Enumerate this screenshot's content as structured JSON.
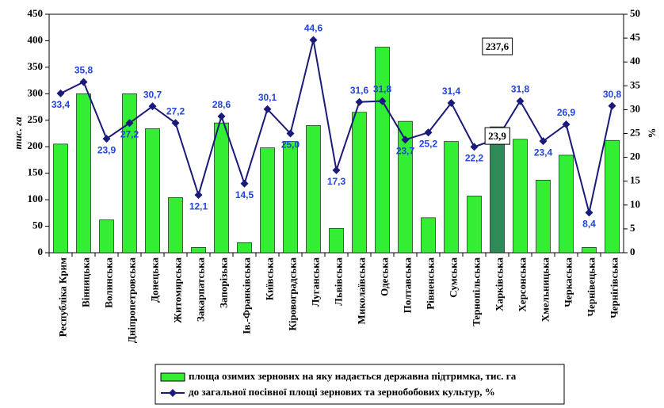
{
  "chart_data": {
    "type": "combo",
    "ylabel": "тис. га",
    "y2label": "%",
    "categories": [
      "Республіка Крим",
      "Вінницька",
      "Волинська",
      "Дніпропетровська",
      "Донецька",
      "Житомирська",
      "Закарпатська",
      "Запорізька",
      "Ів.-Франківська",
      "Київська",
      "Кіровоградська",
      "Луганська",
      "Львівська",
      "Миколаївська",
      "Одеська",
      "Полтавська",
      "Рівненська",
      "Сумська",
      "Тернопільська",
      "Харківська",
      "Херсонська",
      "Хмельницька",
      "Черкаська",
      "Чернівецька",
      "Чернігівська"
    ],
    "series": [
      {
        "name": "площа озимих зернових на яку надається державна підтримка, тис. га",
        "type": "bar",
        "color": "#33ee33",
        "colors": [
          "#33ee33",
          "#33ee33",
          "#33ee33",
          "#33ee33",
          "#33ee33",
          "#33ee33",
          "#33ee33",
          "#33ee33",
          "#33ee33",
          "#33ee33",
          "#33ee33",
          "#33ee33",
          "#33ee33",
          "#33ee33",
          "#33ee33",
          "#33ee33",
          "#33ee33",
          "#33ee33",
          "#33ee33",
          "#2e8b57",
          "#33ee33",
          "#33ee33",
          "#33ee33",
          "#33ee33",
          "#33ee33"
        ],
        "values": [
          205,
          300,
          62,
          300,
          234,
          104,
          10,
          245,
          19,
          198,
          210,
          240,
          46,
          265,
          388,
          248,
          66,
          210,
          107,
          237.6,
          214,
          137,
          184,
          10,
          212
        ],
        "value_labels": [
          null,
          null,
          null,
          null,
          null,
          null,
          null,
          null,
          null,
          null,
          null,
          null,
          null,
          null,
          null,
          null,
          null,
          null,
          null,
          "237,6",
          null,
          null,
          null,
          null,
          null
        ]
      },
      {
        "name": "до загальної посівної площі зернових та зернобобових культур, %",
        "type": "line",
        "axis": "y2",
        "color": "#1a1a7a",
        "values": [
          33.4,
          35.8,
          23.9,
          27.2,
          30.7,
          27.2,
          12.1,
          28.6,
          14.5,
          30.1,
          25.0,
          44.6,
          17.3,
          31.6,
          31.8,
          23.7,
          25.2,
          31.4,
          22.2,
          23.9,
          31.8,
          23.4,
          26.9,
          8.4,
          30.8
        ],
        "value_labels": [
          "33,4",
          "35,8",
          "23,9",
          "27,2",
          "30,7",
          "27,2",
          "12,1",
          "28,6",
          "14,5",
          "30,1",
          "25,0",
          "44,6",
          "17,3",
          "31,6",
          "31,8",
          "23,7",
          "25,2",
          "31,4",
          "22,2",
          "23,9",
          "31,8",
          "23,4",
          "26,9",
          "8,4",
          "30,8"
        ]
      }
    ],
    "ylim": [
      0,
      450
    ],
    "yticks": [
      0,
      50,
      100,
      150,
      200,
      250,
      300,
      350,
      400,
      450
    ],
    "y2lim": [
      0,
      50
    ],
    "y2ticks": [
      0,
      5,
      10,
      15,
      20,
      25,
      30,
      35,
      40,
      45,
      50
    ]
  }
}
